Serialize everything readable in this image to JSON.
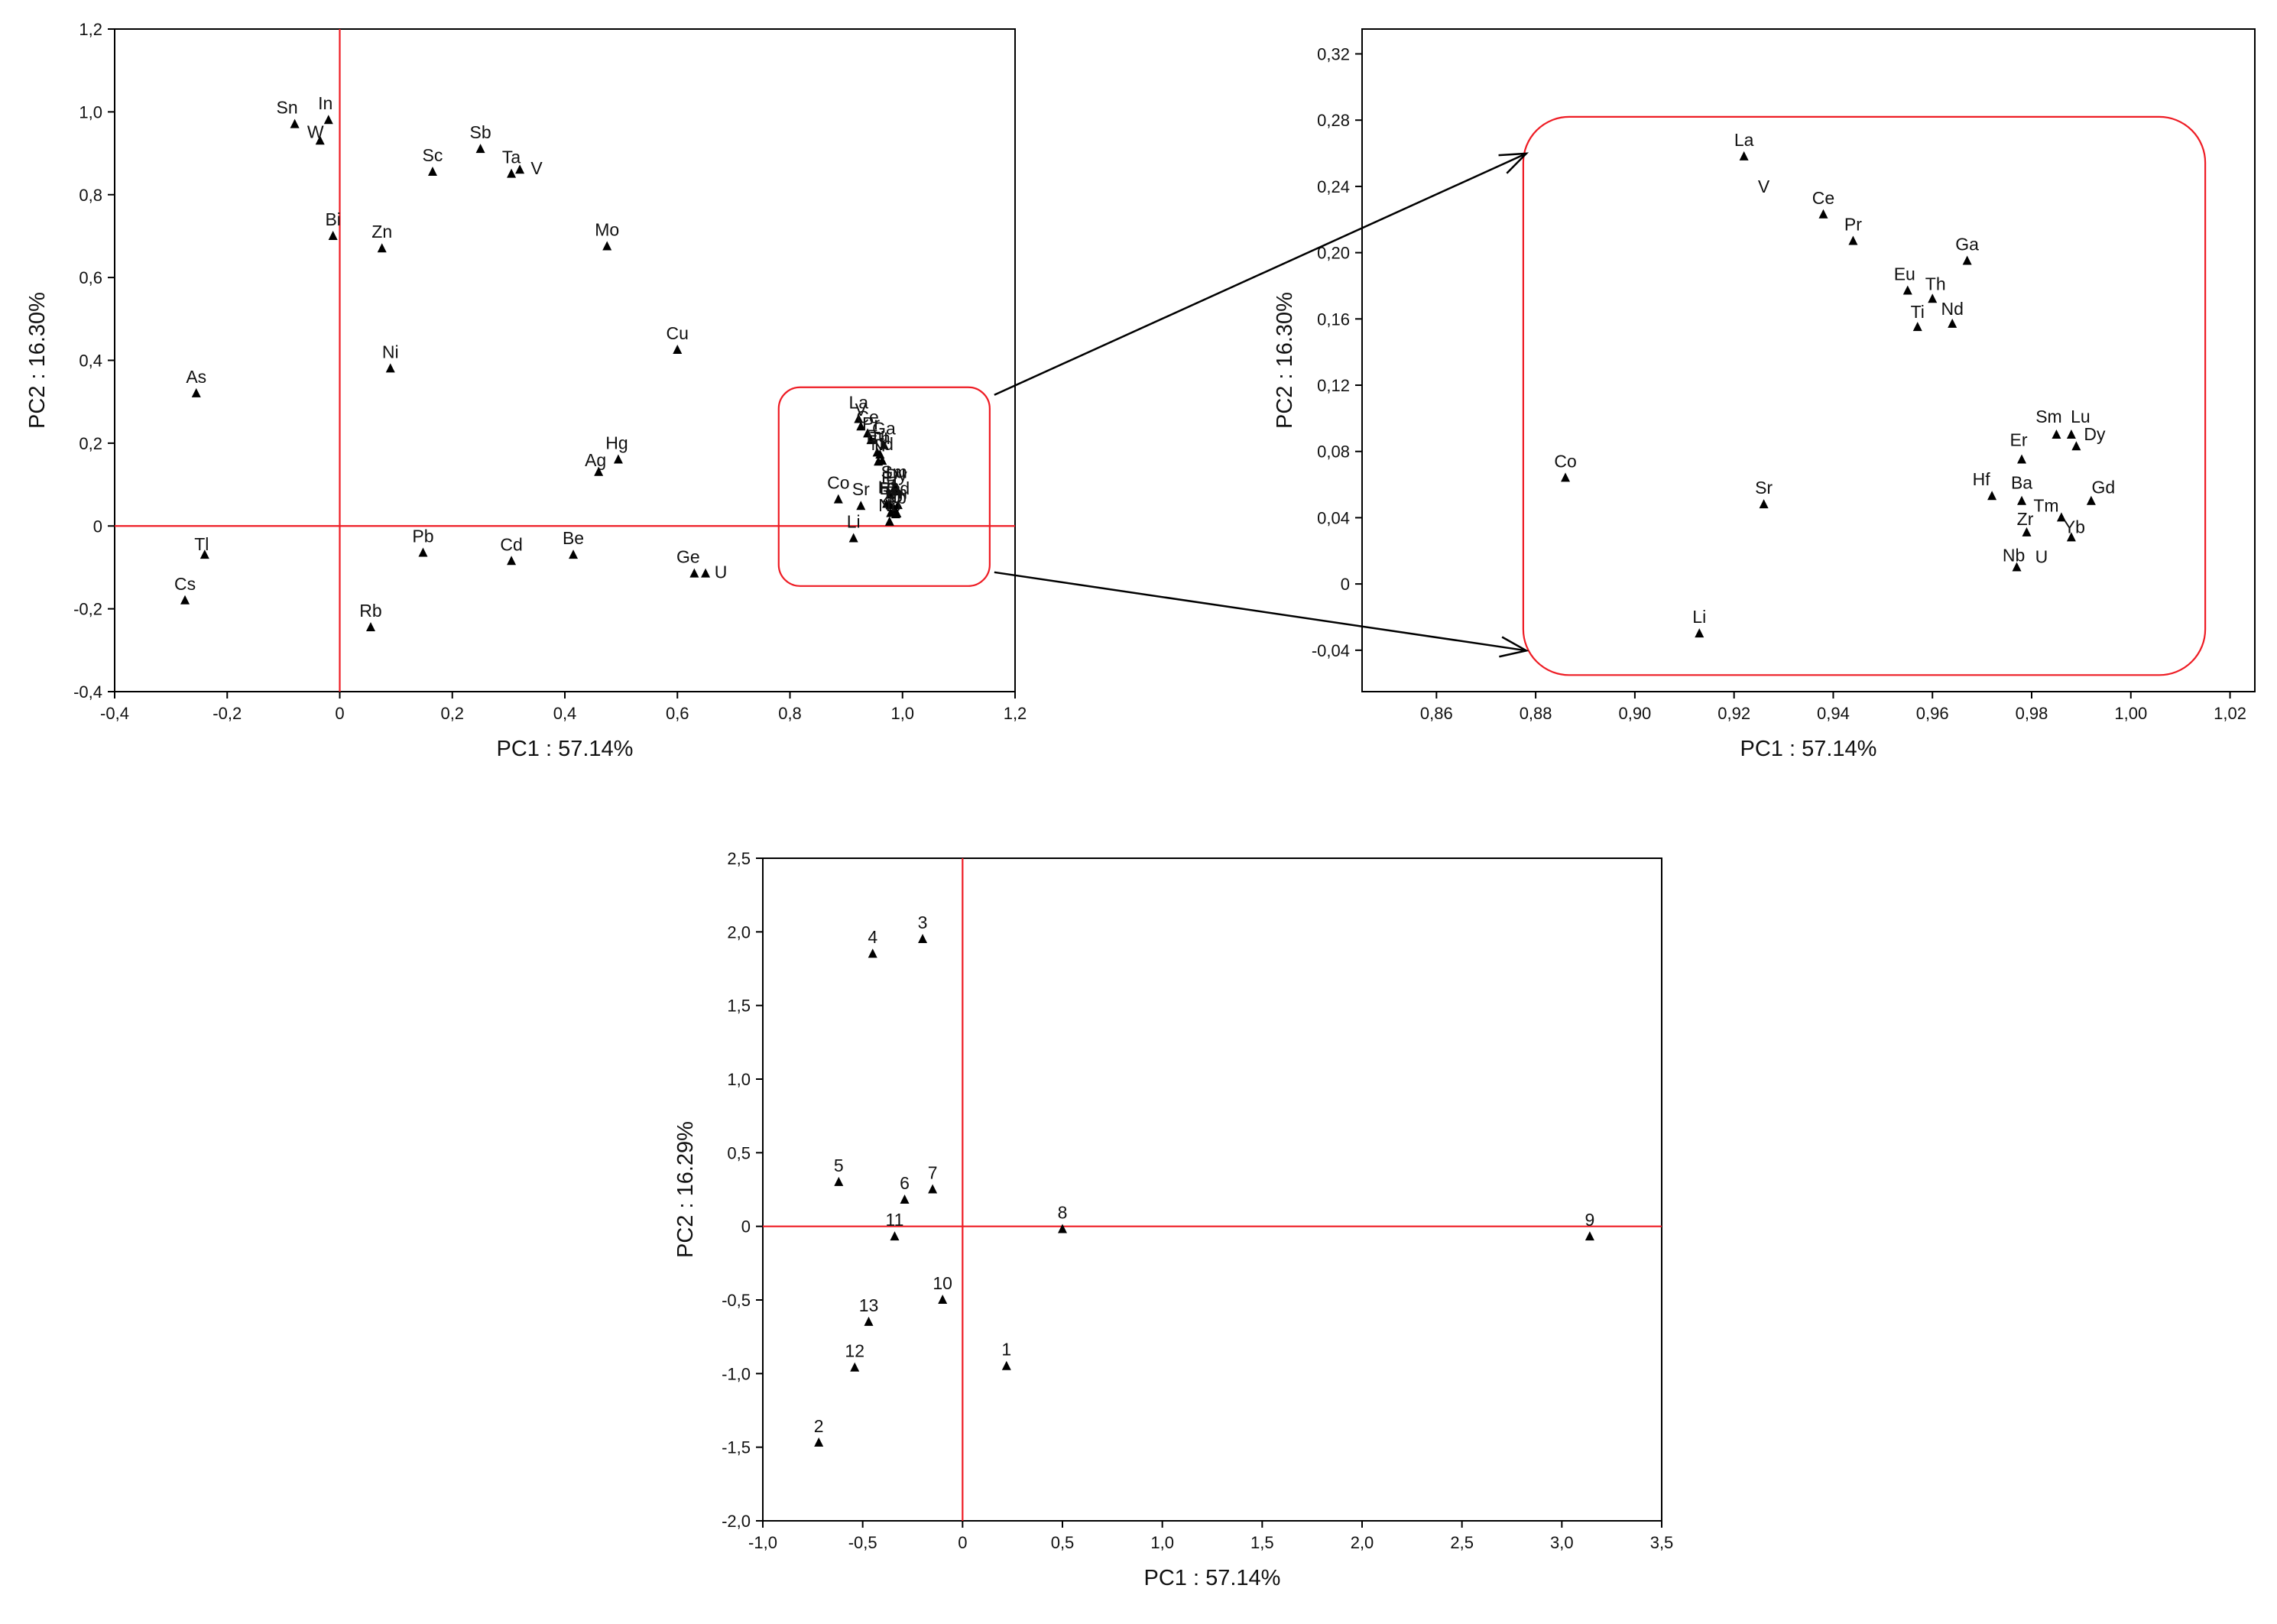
{
  "chart_data": [
    {
      "type": "scatter",
      "title": "",
      "xlabel": "PC1 : 57.14%",
      "ylabel": "PC2 : 16.30%",
      "xlim": [
        -0.4,
        1.2
      ],
      "ylim": [
        -0.4,
        1.2
      ],
      "xticks": [
        -0.4,
        -0.2,
        0,
        0.2,
        0.4,
        0.6,
        0.8,
        1.0,
        1.2
      ],
      "yticks": [
        -0.4,
        -0.2,
        0,
        0.2,
        0.4,
        0.6,
        0.8,
        1.0,
        1.2
      ],
      "xtick_labels": [
        "-0,4",
        "-0,2",
        "0",
        "0,2",
        "0,4",
        "0,6",
        "0,8",
        "1,0",
        "1,2"
      ],
      "ytick_labels": [
        "-0,4",
        "-0,2",
        "0",
        "0,2",
        "0,4",
        "0,6",
        "0,8",
        "1,0",
        "1,2"
      ],
      "reference_lines": {
        "x": 0,
        "y": 0,
        "color": "#ee1c24"
      },
      "points": [
        {
          "label": "Sn",
          "x": -0.08,
          "y": 0.97
        },
        {
          "label": "In",
          "x": -0.02,
          "y": 0.98
        },
        {
          "label": "W",
          "x": -0.035,
          "y": 0.93
        },
        {
          "label": "Sc",
          "x": 0.165,
          "y": 0.855
        },
        {
          "label": "Sb",
          "x": 0.25,
          "y": 0.91
        },
        {
          "label": "Ta",
          "x": 0.305,
          "y": 0.85
        },
        {
          "label": "V",
          "x": 0.32,
          "y": 0.86
        },
        {
          "label": "Bi",
          "x": -0.012,
          "y": 0.7
        },
        {
          "label": "Zn",
          "x": 0.075,
          "y": 0.67
        },
        {
          "label": "Mo",
          "x": 0.475,
          "y": 0.675
        },
        {
          "label": "Cu",
          "x": 0.6,
          "y": 0.425
        },
        {
          "label": "Ni",
          "x": 0.09,
          "y": 0.38
        },
        {
          "label": "As",
          "x": -0.255,
          "y": 0.32
        },
        {
          "label": "Ag",
          "x": 0.46,
          "y": 0.13
        },
        {
          "label": "Hg",
          "x": 0.495,
          "y": 0.16
        },
        {
          "label": "Tl",
          "x": -0.24,
          "y": -0.07
        },
        {
          "label": "Cs",
          "x": -0.275,
          "y": -0.18
        },
        {
          "label": "Pb",
          "x": 0.148,
          "y": -0.065
        },
        {
          "label": "Cd",
          "x": 0.305,
          "y": -0.085
        },
        {
          "label": "Be",
          "x": 0.415,
          "y": -0.07
        },
        {
          "label": "Rb",
          "x": 0.055,
          "y": -0.245
        },
        {
          "label": "Ge",
          "x": 0.63,
          "y": -0.115
        },
        {
          "label": "U",
          "x": 0.65,
          "y": -0.115
        },
        {
          "label": "La",
          "x": 0.922,
          "y": 0.258
        },
        {
          "label": "V",
          "x": 0.926,
          "y": 0.24
        },
        {
          "label": "Ce",
          "x": 0.938,
          "y": 0.223
        },
        {
          "label": "Pr",
          "x": 0.944,
          "y": 0.207
        },
        {
          "label": "Ga",
          "x": 0.967,
          "y": 0.195
        },
        {
          "label": "Eu",
          "x": 0.955,
          "y": 0.177
        },
        {
          "label": "Th",
          "x": 0.96,
          "y": 0.172
        },
        {
          "label": "Ti",
          "x": 0.957,
          "y": 0.155
        },
        {
          "label": "Nd",
          "x": 0.964,
          "y": 0.157
        },
        {
          "label": "Co",
          "x": 0.886,
          "y": 0.064
        },
        {
          "label": "Sr",
          "x": 0.926,
          "y": 0.048
        },
        {
          "label": "Li",
          "x": 0.913,
          "y": -0.03
        },
        {
          "label": "Sm",
          "x": 0.985,
          "y": 0.09
        },
        {
          "label": "Lu",
          "x": 0.988,
          "y": 0.09
        },
        {
          "label": "Dy",
          "x": 0.989,
          "y": 0.083
        },
        {
          "label": "Er",
          "x": 0.978,
          "y": 0.075
        },
        {
          "label": "Hf",
          "x": 0.972,
          "y": 0.053
        },
        {
          "label": "Ba",
          "x": 0.978,
          "y": 0.05
        },
        {
          "label": "Tm",
          "x": 0.986,
          "y": 0.04
        },
        {
          "label": "Gd",
          "x": 0.992,
          "y": 0.05
        },
        {
          "label": "Zr",
          "x": 0.979,
          "y": 0.031
        },
        {
          "label": "Yb",
          "x": 0.988,
          "y": 0.028
        },
        {
          "label": "Nb",
          "x": 0.977,
          "y": 0.01
        },
        {
          "label": "U",
          "x": 0.99,
          "y": 0.03
        }
      ]
    },
    {
      "type": "scatter",
      "title": "",
      "xlabel": "PC1 : 57.14%",
      "ylabel": "PC2 : 16.30%",
      "xlim": [
        0.845,
        1.025
      ],
      "ylim": [
        -0.065,
        0.335
      ],
      "xticks": [
        0.86,
        0.88,
        0.9,
        0.92,
        0.94,
        0.96,
        0.98,
        1.0,
        1.02
      ],
      "yticks": [
        -0.04,
        0,
        0.04,
        0.08,
        0.12,
        0.16,
        0.2,
        0.24,
        0.28,
        0.32
      ],
      "xtick_labels": [
        "0,86",
        "0,88",
        "0,90",
        "0,92",
        "0,94",
        "0,96",
        "0,98",
        "1,00",
        "1,02"
      ],
      "ytick_labels": [
        "-0,04",
        "0",
        "0,04",
        "0,08",
        "0,12",
        "0,16",
        "0,20",
        "0,24",
        "0,28",
        "0,32"
      ],
      "points": [
        {
          "label": "La",
          "x": 0.922,
          "y": 0.258
        },
        {
          "label": "V",
          "x": 0.926,
          "y": 0.24,
          "no_marker": true
        },
        {
          "label": "Ce",
          "x": 0.938,
          "y": 0.223
        },
        {
          "label": "Pr",
          "x": 0.944,
          "y": 0.207
        },
        {
          "label": "Ga",
          "x": 0.967,
          "y": 0.195
        },
        {
          "label": "Eu",
          "x": 0.955,
          "y": 0.177
        },
        {
          "label": "Th",
          "x": 0.96,
          "y": 0.172
        },
        {
          "label": "Ti",
          "x": 0.957,
          "y": 0.155
        },
        {
          "label": "Nd",
          "x": 0.964,
          "y": 0.157
        },
        {
          "label": "Co",
          "x": 0.886,
          "y": 0.064
        },
        {
          "label": "Sr",
          "x": 0.926,
          "y": 0.048
        },
        {
          "label": "Li",
          "x": 0.913,
          "y": -0.03
        },
        {
          "label": "Sm",
          "x": 0.985,
          "y": 0.09
        },
        {
          "label": "Lu",
          "x": 0.988,
          "y": 0.09
        },
        {
          "label": "Dy",
          "x": 0.989,
          "y": 0.083
        },
        {
          "label": "Er",
          "x": 0.978,
          "y": 0.075
        },
        {
          "label": "Hf",
          "x": 0.972,
          "y": 0.053
        },
        {
          "label": "Ba",
          "x": 0.978,
          "y": 0.05
        },
        {
          "label": "Tm",
          "x": 0.986,
          "y": 0.04
        },
        {
          "label": "Gd",
          "x": 0.992,
          "y": 0.05
        },
        {
          "label": "Zr",
          "x": 0.979,
          "y": 0.031
        },
        {
          "label": "Yb",
          "x": 0.988,
          "y": 0.028
        },
        {
          "label": "Nb",
          "x": 0.977,
          "y": 0.01
        },
        {
          "label": "U",
          "x": 0.982,
          "y": 0.009,
          "no_marker": true
        }
      ]
    },
    {
      "type": "scatter",
      "title": "",
      "xlabel": "PC1 : 57.14%",
      "ylabel": "PC2 : 16.29%",
      "xlim": [
        -1.0,
        3.5
      ],
      "ylim": [
        -2.0,
        2.5
      ],
      "xticks": [
        -1.0,
        -0.5,
        0,
        0.5,
        1.0,
        1.5,
        2.0,
        2.5,
        3.0,
        3.5
      ],
      "yticks": [
        -2.0,
        -1.5,
        -1.0,
        -0.5,
        0,
        0.5,
        1.0,
        1.5,
        2.0,
        2.5
      ],
      "xtick_labels": [
        "-1,0",
        "-0,5",
        "0",
        "0,5",
        "1,0",
        "1,5",
        "2,0",
        "2,5",
        "3,0",
        "3,5"
      ],
      "ytick_labels": [
        "-2,0",
        "-1,5",
        "-1,0",
        "-0,5",
        "0",
        "0,5",
        "1,0",
        "1,5",
        "2,0",
        "2,5"
      ],
      "reference_lines": {
        "x": 0,
        "y": 0,
        "color": "#ee1c24"
      },
      "points": [
        {
          "label": "1",
          "x": 0.22,
          "y": -0.95
        },
        {
          "label": "2",
          "x": -0.72,
          "y": -1.47
        },
        {
          "label": "3",
          "x": -0.2,
          "y": 1.95
        },
        {
          "label": "4",
          "x": -0.45,
          "y": 1.85
        },
        {
          "label": "5",
          "x": -0.62,
          "y": 0.3
        },
        {
          "label": "6",
          "x": -0.29,
          "y": 0.18
        },
        {
          "label": "7",
          "x": -0.15,
          "y": 0.25
        },
        {
          "label": "8",
          "x": 0.5,
          "y": -0.02
        },
        {
          "label": "9",
          "x": 3.14,
          "y": -0.07
        },
        {
          "label": "10",
          "x": -0.1,
          "y": -0.5
        },
        {
          "label": "11",
          "x": -0.34,
          "y": -0.07
        },
        {
          "label": "12",
          "x": -0.54,
          "y": -0.96
        },
        {
          "label": "13",
          "x": -0.47,
          "y": -0.65
        }
      ]
    }
  ]
}
